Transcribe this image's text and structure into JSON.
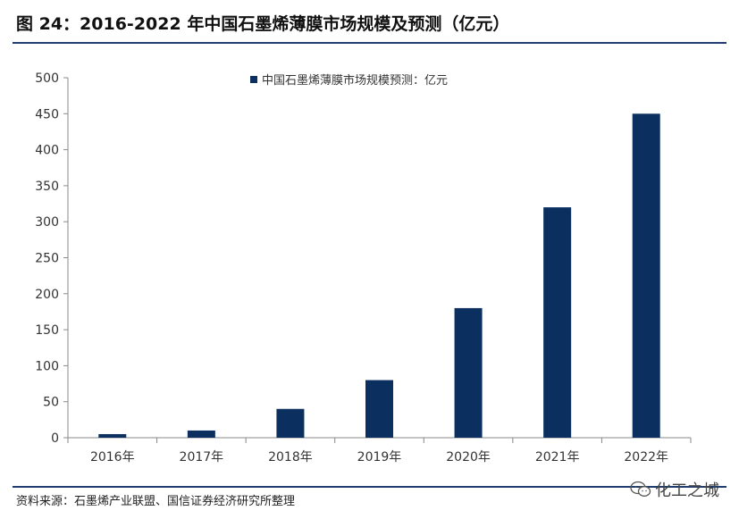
{
  "figure": {
    "title": "图 24：2016-2022 年中国石墨烯薄膜市场规模及预测（亿元）",
    "source": "资料来源：石墨烯产业联盟、国信证券经济研究所整理",
    "watermark": "化工之城",
    "watermark_icon": "wechat-icon"
  },
  "chart_data": {
    "type": "bar",
    "categories": [
      "2016年",
      "2017年",
      "2018年",
      "2019年",
      "2020年",
      "2021年",
      "2022年"
    ],
    "series": [
      {
        "name": "中国石墨烯薄膜市场规模预测：亿元",
        "values": [
          5,
          10,
          40,
          80,
          180,
          320,
          450
        ],
        "color": "#0b2f5f"
      }
    ],
    "ylim": [
      0,
      500
    ],
    "yticks": [
      "0",
      "50",
      "100",
      "150",
      "200",
      "250",
      "300",
      "350",
      "400",
      "450",
      "500"
    ],
    "grid": false,
    "legend_position": "top-left"
  }
}
